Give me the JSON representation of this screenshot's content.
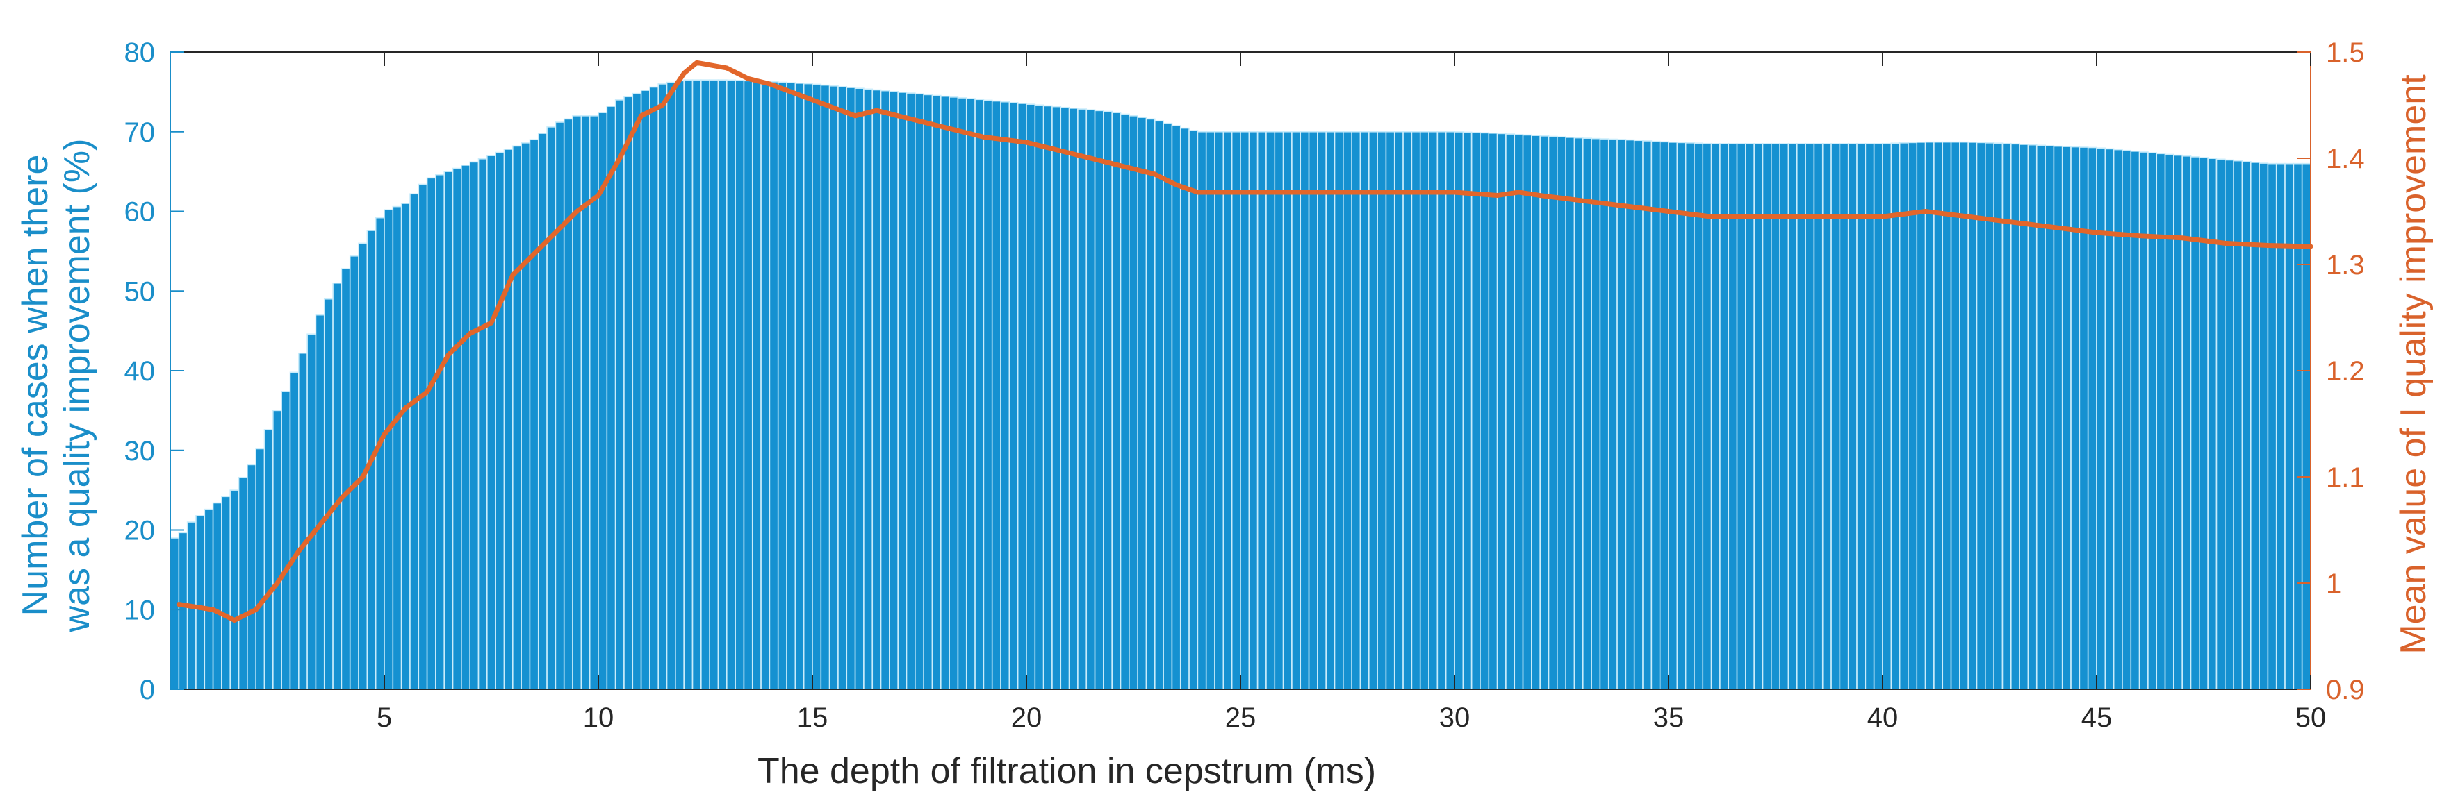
{
  "chart_data": {
    "type": "bar",
    "title": "",
    "xlabel": "The depth of filtration in cepstrum (ms)",
    "ylabel_left_line1": "Number of cases when there",
    "ylabel_left_line2": "was a quality improvement (%)",
    "ylabel_right": "Mean value of I quality improvement",
    "xlim": [
      0,
      50
    ],
    "ylim_left": [
      0,
      80
    ],
    "ylim_right": [
      0.9,
      1.5
    ],
    "x_ticks": [
      "5",
      "10",
      "15",
      "20",
      "25",
      "30",
      "35",
      "40",
      "45",
      "50"
    ],
    "y_left_ticks": [
      "0",
      "10",
      "20",
      "30",
      "40",
      "50",
      "60",
      "70",
      "80"
    ],
    "y_right_ticks": [
      "0.9",
      "1",
      "1.1",
      "1.2",
      "1.3",
      "1.4",
      "1.5"
    ],
    "bar_count": 250,
    "bar_width_ms": 0.2,
    "colors": {
      "bars": "#1591d1",
      "bar_edge": "#c9ecfb",
      "line": "#e2662a",
      "left_axis": "#1a8ec9",
      "right_axis": "#d9622b",
      "axis_black": "#262626"
    },
    "series": [
      {
        "name": "Number of cases when there was a quality improvement (%)",
        "axis": "left",
        "type": "bar",
        "points": [
          [
            0.2,
            19
          ],
          [
            0.5,
            21
          ],
          [
            1,
            23
          ],
          [
            1.5,
            25
          ],
          [
            2,
            29
          ],
          [
            2.5,
            35
          ],
          [
            3,
            41
          ],
          [
            3.5,
            47
          ],
          [
            4,
            52
          ],
          [
            4.5,
            56
          ],
          [
            5,
            60
          ],
          [
            5.5,
            61
          ],
          [
            6,
            64
          ],
          [
            6.5,
            65
          ],
          [
            7,
            66
          ],
          [
            7.5,
            67
          ],
          [
            8,
            68
          ],
          [
            8.5,
            69
          ],
          [
            9,
            71
          ],
          [
            9.5,
            72
          ],
          [
            10,
            72
          ],
          [
            10.5,
            74
          ],
          [
            11,
            75
          ],
          [
            11.5,
            76
          ],
          [
            12,
            76.5
          ],
          [
            13,
            76.5
          ],
          [
            14,
            76.3
          ],
          [
            15,
            76
          ],
          [
            16,
            75.5
          ],
          [
            17,
            75
          ],
          [
            18,
            74.5
          ],
          [
            19,
            74
          ],
          [
            20,
            73.5
          ],
          [
            21,
            73
          ],
          [
            22,
            72.5
          ],
          [
            23,
            71.5
          ],
          [
            24,
            70
          ],
          [
            25,
            70
          ],
          [
            26,
            70
          ],
          [
            27,
            70
          ],
          [
            28,
            70
          ],
          [
            29,
            70
          ],
          [
            30,
            70
          ],
          [
            31,
            69.8
          ],
          [
            32,
            69.5
          ],
          [
            33,
            69.2
          ],
          [
            34,
            69
          ],
          [
            35,
            68.7
          ],
          [
            36,
            68.5
          ],
          [
            37,
            68.5
          ],
          [
            38,
            68.5
          ],
          [
            39,
            68.5
          ],
          [
            40,
            68.5
          ],
          [
            41,
            68.7
          ],
          [
            42,
            68.7
          ],
          [
            43,
            68.5
          ],
          [
            44,
            68.2
          ],
          [
            45,
            68
          ],
          [
            46,
            67.5
          ],
          [
            47,
            67
          ],
          [
            48,
            66.5
          ],
          [
            49,
            66
          ],
          [
            50,
            66
          ]
        ]
      },
      {
        "name": "Mean value of I quality improvement",
        "axis": "right",
        "type": "line",
        "points": [
          [
            0.2,
            0.98
          ],
          [
            1,
            0.975
          ],
          [
            1.5,
            0.965
          ],
          [
            2,
            0.975
          ],
          [
            2.5,
            1.0
          ],
          [
            3,
            1.03
          ],
          [
            3.5,
            1.055
          ],
          [
            4,
            1.08
          ],
          [
            4.5,
            1.1
          ],
          [
            5,
            1.14
          ],
          [
            5.5,
            1.165
          ],
          [
            6,
            1.18
          ],
          [
            6.5,
            1.215
          ],
          [
            7,
            1.235
          ],
          [
            7.5,
            1.245
          ],
          [
            8,
            1.29
          ],
          [
            8.5,
            1.31
          ],
          [
            9,
            1.33
          ],
          [
            9.5,
            1.35
          ],
          [
            10,
            1.365
          ],
          [
            10.5,
            1.4
          ],
          [
            11,
            1.44
          ],
          [
            11.5,
            1.45
          ],
          [
            12,
            1.48
          ],
          [
            12.3,
            1.49
          ],
          [
            13,
            1.485
          ],
          [
            13.5,
            1.475
          ],
          [
            14,
            1.47
          ],
          [
            15,
            1.455
          ],
          [
            16,
            1.44
          ],
          [
            16.5,
            1.445
          ],
          [
            17,
            1.44
          ],
          [
            18,
            1.43
          ],
          [
            19,
            1.42
          ],
          [
            20,
            1.415
          ],
          [
            21,
            1.405
          ],
          [
            22,
            1.395
          ],
          [
            23,
            1.385
          ],
          [
            23.5,
            1.375
          ],
          [
            24,
            1.368
          ],
          [
            26,
            1.368
          ],
          [
            28,
            1.368
          ],
          [
            30,
            1.368
          ],
          [
            31,
            1.365
          ],
          [
            31.5,
            1.368
          ],
          [
            32,
            1.365
          ],
          [
            33,
            1.36
          ],
          [
            34,
            1.355
          ],
          [
            35,
            1.35
          ],
          [
            36,
            1.345
          ],
          [
            38,
            1.345
          ],
          [
            40,
            1.345
          ],
          [
            41,
            1.35
          ],
          [
            42,
            1.345
          ],
          [
            43,
            1.34
          ],
          [
            44,
            1.335
          ],
          [
            45,
            1.33
          ],
          [
            46,
            1.327
          ],
          [
            47,
            1.325
          ],
          [
            48,
            1.32
          ],
          [
            49,
            1.318
          ],
          [
            50,
            1.317
          ]
        ]
      }
    ]
  }
}
